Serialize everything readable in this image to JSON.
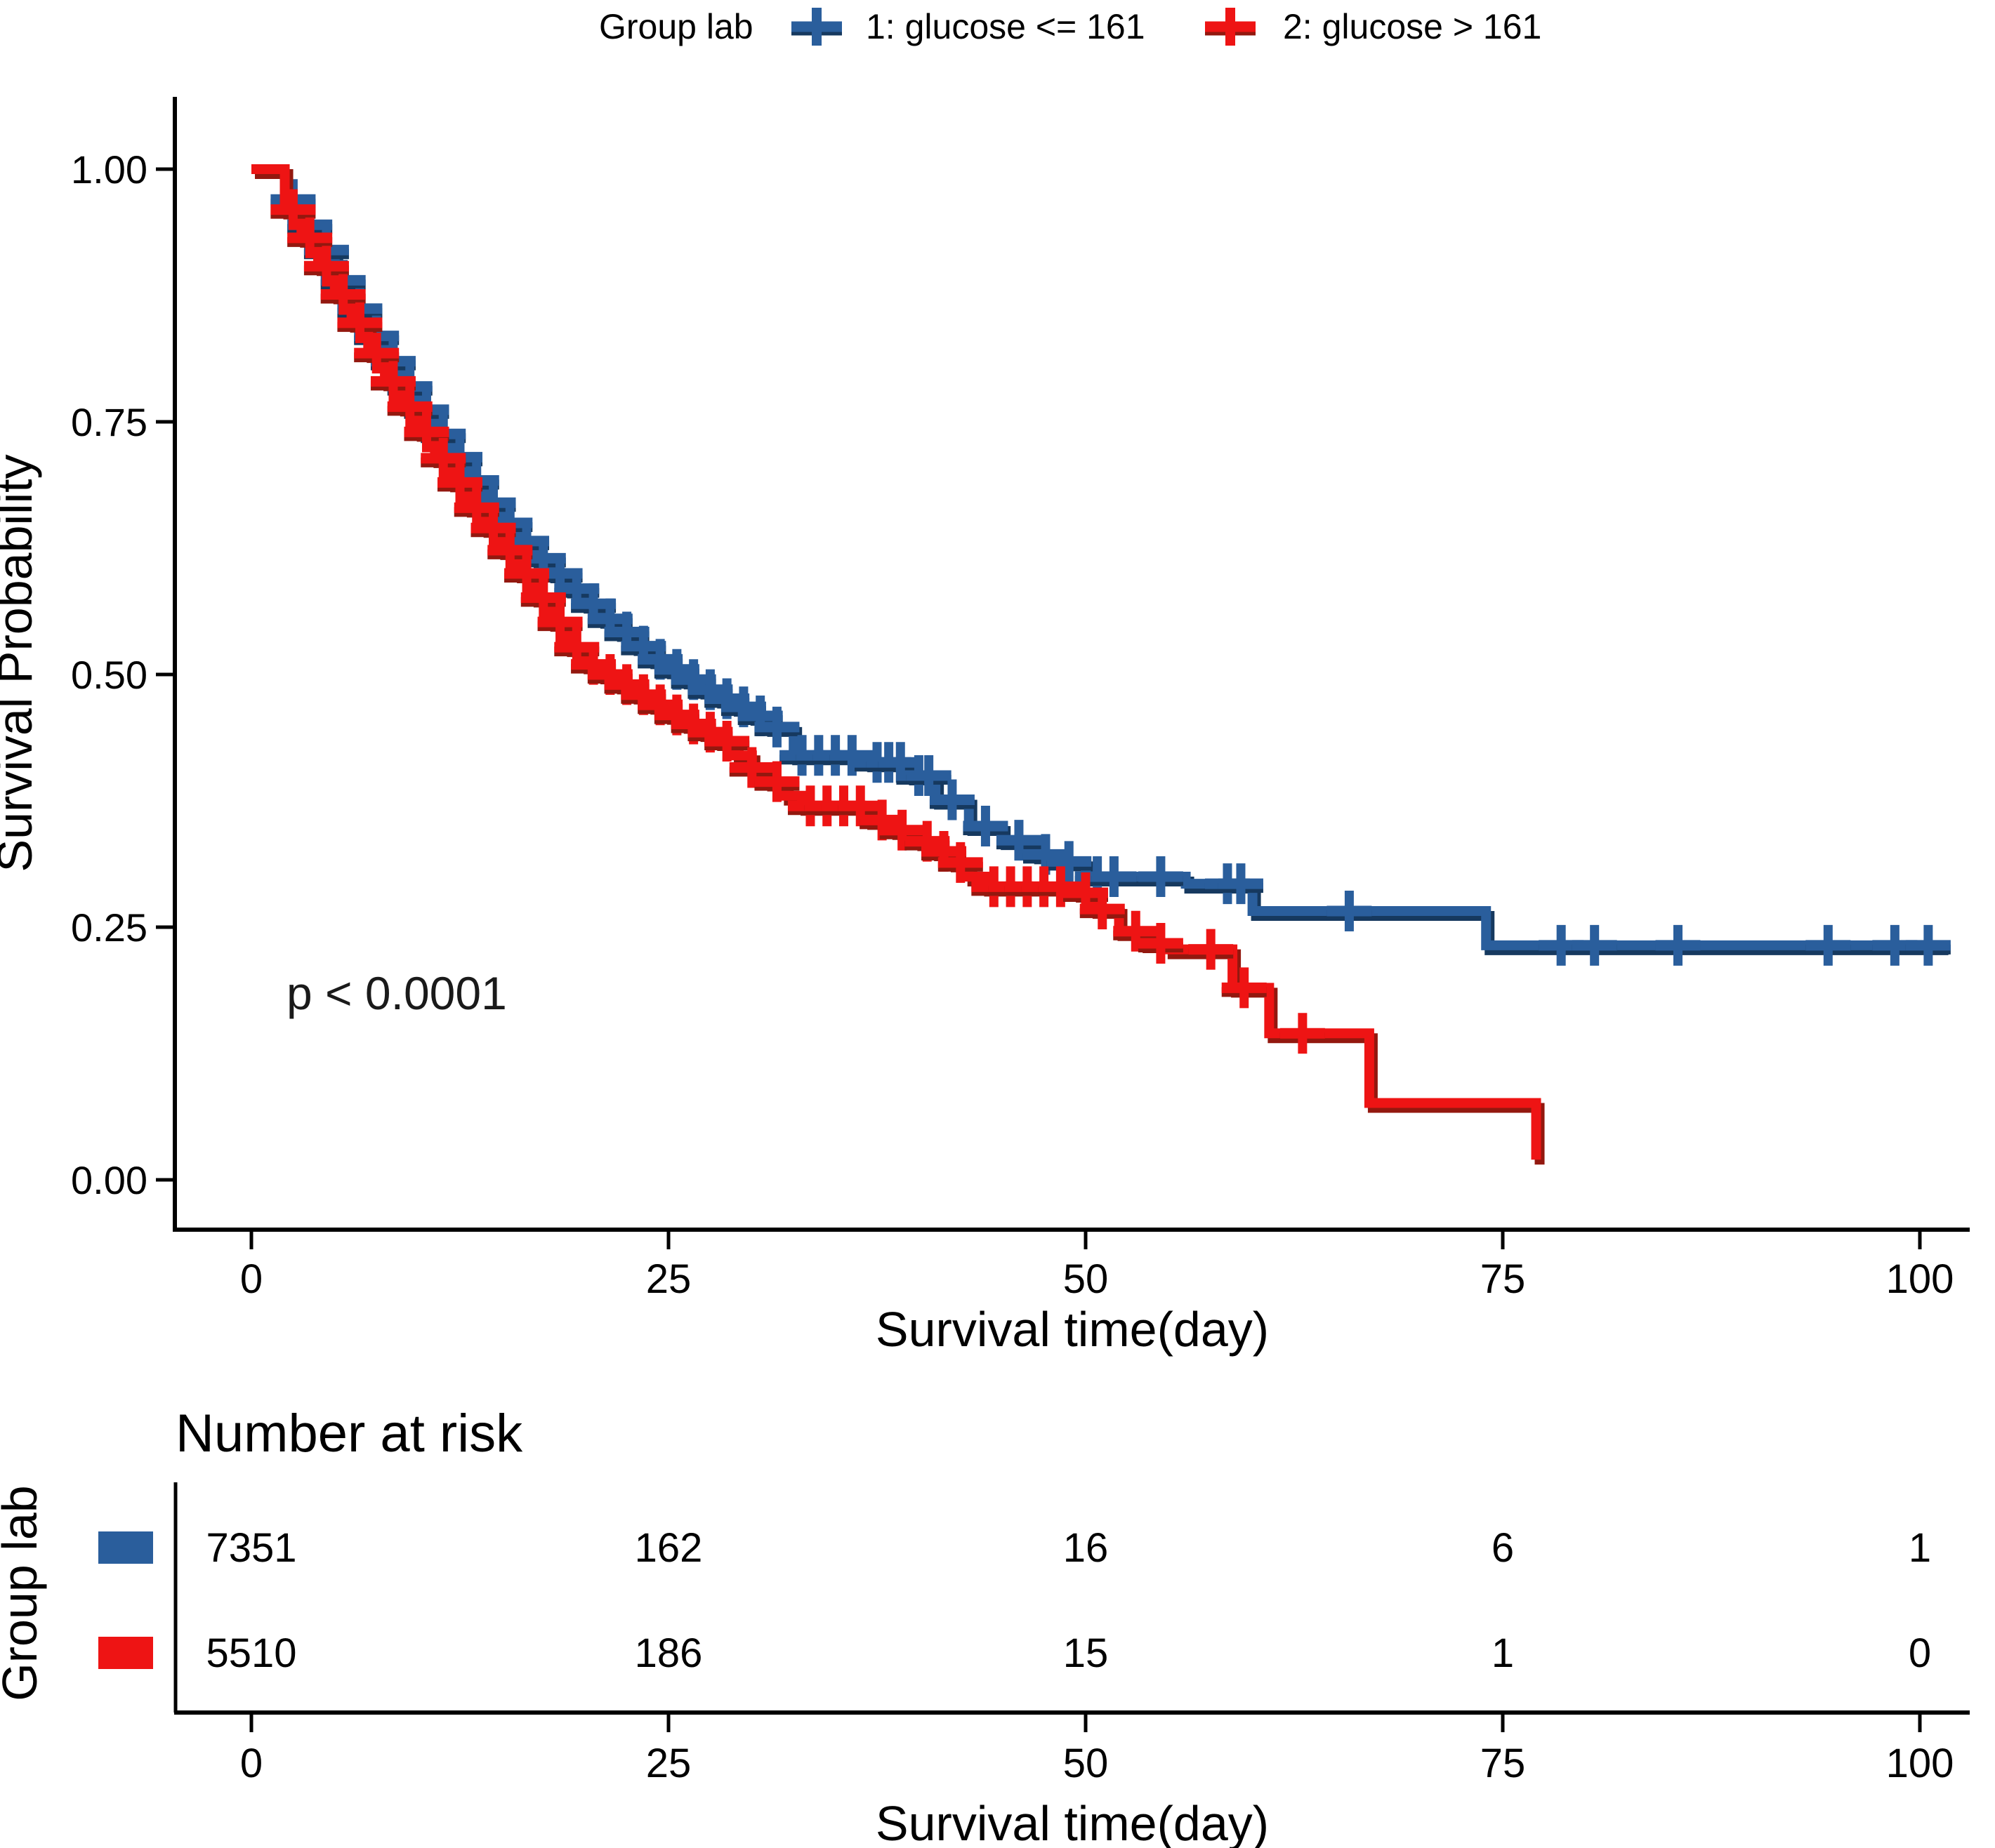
{
  "figure": {
    "legend": {
      "title": "Group lab",
      "items": [
        {
          "label": "1: glucose <= 161"
        },
        {
          "label": "2: glucose > 161"
        }
      ]
    },
    "annotation_p": "p < 0.0001",
    "main_axes": {
      "x_label": "Survival time(day)",
      "y_label": "Survival Probability",
      "x_ticks": [
        {
          "label": "0",
          "t": 0
        },
        {
          "label": "25",
          "t": 25
        },
        {
          "label": "50",
          "t": 50
        },
        {
          "label": "75",
          "t": 75
        },
        {
          "label": "100",
          "t": 100
        }
      ],
      "y_ticks": [
        {
          "label": "1.00",
          "p": 1.0
        },
        {
          "label": "0.75",
          "p": 0.75
        },
        {
          "label": "0.50",
          "p": 0.5
        },
        {
          "label": "0.25",
          "p": 0.25
        },
        {
          "label": "0.00",
          "p": 0.0
        }
      ]
    },
    "risk_table": {
      "title": "Number at risk",
      "group_label": "Group lab",
      "x_label": "Survival time(day)",
      "x_ticks": [
        {
          "label": "0",
          "t": 0
        },
        {
          "label": "25",
          "t": 25
        },
        {
          "label": "50",
          "t": 50
        },
        {
          "label": "75",
          "t": 75
        },
        {
          "label": "100",
          "t": 100
        }
      ],
      "rows": [
        {
          "name": "1: glucose <= 161",
          "counts": [
            "7351",
            "162",
            "16",
            "6",
            "1"
          ],
          "color": "#2a5e9c",
          "text_color": "#3a67a5"
        },
        {
          "name": "2: glucose > 161",
          "counts": [
            "5510",
            "186",
            "15",
            "1",
            "0"
          ],
          "color": "#ee1414",
          "text_color": "#d42f2b"
        }
      ]
    }
  },
  "chart_data": {
    "type": "line",
    "subtype": "kaplan_meier_step",
    "title": "",
    "xlabel": "Survival time(day)",
    "ylabel": "Survival Probability",
    "xlim": [
      0,
      105
    ],
    "ylim": [
      0,
      1
    ],
    "x_ticks": [
      0,
      25,
      50,
      75,
      100
    ],
    "y_ticks": [
      0,
      0.25,
      0.5,
      0.75,
      1
    ],
    "grid": false,
    "legend_position": "top",
    "legend_title": "Group lab",
    "p_value": "p < 0.0001",
    "series": [
      {
        "name": "1: glucose <= 161",
        "color": "#2a5e9c",
        "shadow": "#16395f",
        "steps": [
          [
            0,
            1
          ],
          [
            2,
            0.97
          ],
          [
            3,
            0.945
          ],
          [
            4,
            0.92
          ],
          [
            5,
            0.89
          ],
          [
            6,
            0.862
          ],
          [
            7,
            0.835
          ],
          [
            8,
            0.81
          ],
          [
            9,
            0.785
          ],
          [
            10,
            0.762
          ],
          [
            11,
            0.738
          ],
          [
            12,
            0.715
          ],
          [
            13,
            0.692
          ],
          [
            14,
            0.67
          ],
          [
            15,
            0.65
          ],
          [
            16,
            0.632
          ],
          [
            17,
            0.615
          ],
          [
            18,
            0.6
          ],
          [
            19,
            0.585
          ],
          [
            20,
            0.57
          ],
          [
            21,
            0.555
          ],
          [
            22,
            0.542
          ],
          [
            23,
            0.528
          ],
          [
            24,
            0.515
          ],
          [
            25,
            0.505
          ],
          [
            26,
            0.495
          ],
          [
            27,
            0.485
          ],
          [
            28,
            0.476
          ],
          [
            29,
            0.468
          ],
          [
            30,
            0.459
          ],
          [
            31,
            0.448
          ],
          [
            32.5,
            0.42
          ],
          [
            37,
            0.413
          ],
          [
            39.5,
            0.4
          ],
          [
            41,
            0.376
          ],
          [
            43,
            0.35
          ],
          [
            45,
            0.336
          ],
          [
            47,
            0.322
          ],
          [
            48.5,
            0.315
          ],
          [
            50,
            0.3
          ],
          [
            56,
            0.293
          ],
          [
            60,
            0.266
          ],
          [
            74,
            0.232
          ]
        ],
        "end": 101.5,
        "censors": [
          2.5,
          3.5,
          4.5,
          5.5,
          6.5,
          7.5,
          8.5,
          9.5,
          10.5,
          11.5,
          12.5,
          13.5,
          14.5,
          15.5,
          16.5,
          17.5,
          18.5,
          19.5,
          20.5,
          21.5,
          22.5,
          23.5,
          24.5,
          25.5,
          26.5,
          27.5,
          28.5,
          29.5,
          30.5,
          31.5,
          33,
          34,
          35,
          36,
          37.5,
          38.2,
          38.9,
          40,
          40.6,
          42,
          44,
          46,
          47.6,
          49,
          50.7,
          51.7,
          54.5,
          58.5,
          59.3,
          65.8,
          78.5,
          80.5,
          85.5,
          94.5,
          98.5,
          100.5
        ],
        "number_at_risk": {
          "0": 7351,
          "25": 162,
          "50": 16,
          "75": 6,
          "100": 1
        }
      },
      {
        "name": "2: glucose > 161",
        "color": "#ee1414",
        "shadow": "#93180f",
        "steps": [
          [
            0,
            1
          ],
          [
            2,
            0.96
          ],
          [
            3,
            0.932
          ],
          [
            4,
            0.904
          ],
          [
            5,
            0.876
          ],
          [
            6,
            0.848
          ],
          [
            7,
            0.818
          ],
          [
            8,
            0.79
          ],
          [
            9,
            0.765
          ],
          [
            10,
            0.74
          ],
          [
            11,
            0.714
          ],
          [
            12,
            0.69
          ],
          [
            13,
            0.665
          ],
          [
            14,
            0.645
          ],
          [
            15,
            0.623
          ],
          [
            16,
            0.6
          ],
          [
            17,
            0.576
          ],
          [
            18,
            0.552
          ],
          [
            19,
            0.527
          ],
          [
            20,
            0.51
          ],
          [
            21,
            0.5
          ],
          [
            22,
            0.49
          ],
          [
            23,
            0.48
          ],
          [
            24,
            0.47
          ],
          [
            25,
            0.46
          ],
          [
            26,
            0.451
          ],
          [
            27,
            0.443
          ],
          [
            28,
            0.434
          ],
          [
            29,
            0.42
          ],
          [
            30,
            0.408
          ],
          [
            31,
            0.394
          ],
          [
            32,
            0.38
          ],
          [
            33,
            0.37
          ],
          [
            37,
            0.356
          ],
          [
            38.5,
            0.346
          ],
          [
            40,
            0.335
          ],
          [
            41,
            0.325
          ],
          [
            42,
            0.314
          ],
          [
            43,
            0.3
          ],
          [
            44,
            0.29
          ],
          [
            49.5,
            0.284
          ],
          [
            50.5,
            0.268
          ],
          [
            52,
            0.246
          ],
          [
            53.5,
            0.234
          ],
          [
            55,
            0.228
          ],
          [
            58.8,
            0.19
          ],
          [
            61,
            0.145
          ],
          [
            67,
            0.076
          ],
          [
            77,
            0.02
          ]
        ],
        "end": 77,
        "censors": [
          2.5,
          3.5,
          4.5,
          5.5,
          6.5,
          7.5,
          8.5,
          9.5,
          10.5,
          11.5,
          12.5,
          13.5,
          14.5,
          15.5,
          16.5,
          17.5,
          18.5,
          19.5,
          20.5,
          21.5,
          22.5,
          23.5,
          24.5,
          25.5,
          26.5,
          27.5,
          28.5,
          30,
          31.5,
          33.5,
          34.5,
          35.5,
          36.5,
          37.8,
          39,
          40.5,
          41.5,
          42.5,
          44.5,
          45.5,
          46.5,
          47.5,
          48.5,
          50,
          51,
          53,
          54.5,
          57.5,
          59.5,
          63
        ],
        "number_at_risk": {
          "0": 5510,
          "25": 186,
          "50": 15,
          "75": 1,
          "100": 0
        }
      }
    ]
  }
}
